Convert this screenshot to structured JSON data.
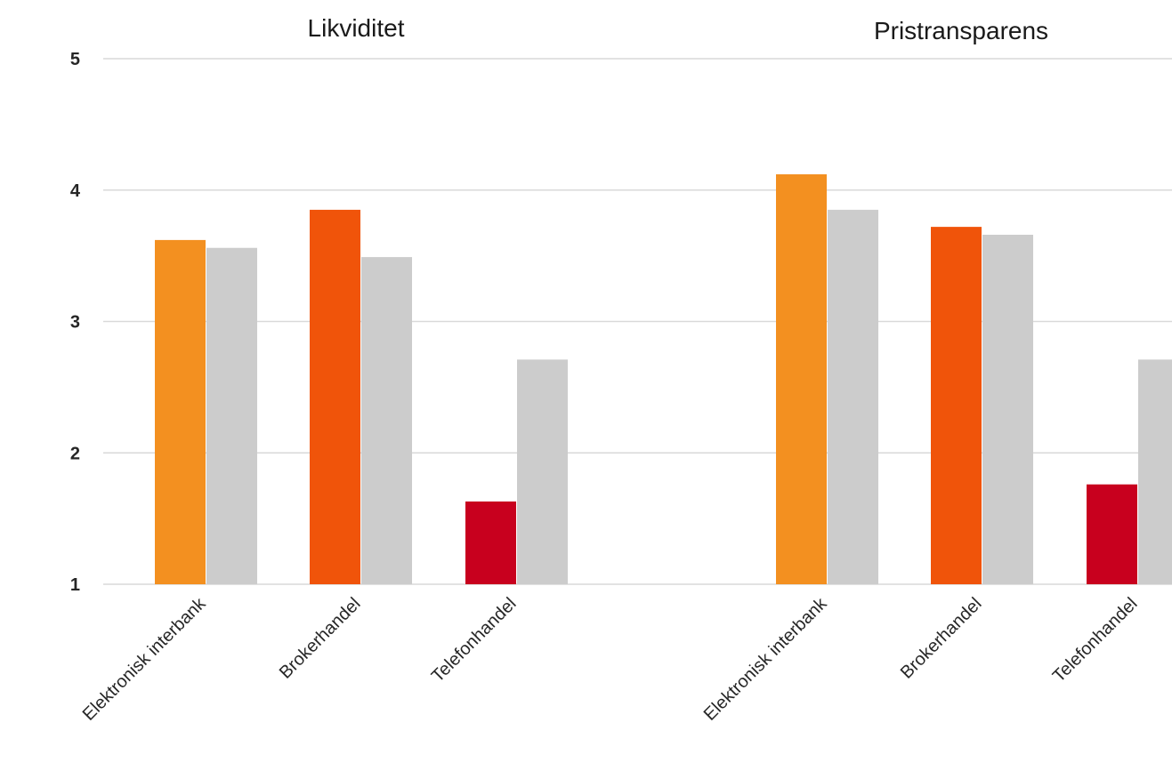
{
  "chart_data": {
    "type": "bar",
    "ylim": [
      1,
      5
    ],
    "yticks": [
      "1",
      "2",
      "3",
      "4",
      "5"
    ],
    "grid": true,
    "colors": {
      "Elektronisk interbank": "#f39020",
      "Brokerhandel": "#f0540a",
      "Telefonhandel": "#c8001e",
      "comparison": "#cccccc"
    },
    "panels": [
      {
        "title": "Likviditet",
        "categories": [
          "Elektronisk interbank",
          "Brokerhandel",
          "Telefonhandel"
        ],
        "series": [
          {
            "values": [
              3.62,
              3.85,
              1.63
            ]
          },
          {
            "values": [
              3.56,
              3.49,
              2.71
            ]
          }
        ]
      },
      {
        "title": "Pristransparens",
        "categories": [
          "Elektronisk interbank",
          "Brokerhandel",
          "Telefonhandel"
        ],
        "series": [
          {
            "values": [
              4.12,
              3.72,
              1.76
            ]
          },
          {
            "values": [
              3.85,
              3.66,
              2.71
            ]
          }
        ]
      }
    ]
  }
}
